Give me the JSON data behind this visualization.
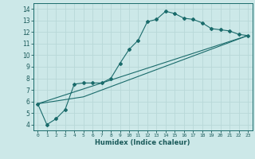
{
  "xlabel": "Humidex (Indice chaleur)",
  "ylabel": "",
  "bg_color": "#cce8e8",
  "grid_color": "#b8d8d8",
  "line_color": "#1a6b6b",
  "xlim": [
    -0.5,
    23.5
  ],
  "ylim": [
    3.5,
    14.5
  ],
  "xticks": [
    0,
    1,
    2,
    3,
    4,
    5,
    6,
    7,
    8,
    9,
    10,
    11,
    12,
    13,
    14,
    15,
    16,
    17,
    18,
    19,
    20,
    21,
    22,
    23
  ],
  "yticks": [
    4,
    5,
    6,
    7,
    8,
    9,
    10,
    11,
    12,
    13,
    14
  ],
  "line1_x": [
    0,
    1,
    2,
    3,
    4,
    5,
    6,
    7,
    8,
    9,
    10,
    11,
    12,
    13,
    14,
    15,
    16,
    17,
    18,
    19,
    20,
    21,
    22,
    23
  ],
  "line1_y": [
    5.8,
    4.0,
    4.5,
    5.3,
    7.5,
    7.6,
    7.6,
    7.6,
    8.0,
    9.3,
    10.5,
    11.3,
    12.9,
    13.1,
    13.8,
    13.6,
    13.2,
    13.1,
    12.8,
    12.3,
    12.2,
    12.1,
    11.8,
    11.7
  ],
  "line2_x": [
    0,
    23
  ],
  "line2_y": [
    5.8,
    11.7
  ],
  "line3_x": [
    0,
    5,
    23
  ],
  "line3_y": [
    5.8,
    6.4,
    11.7
  ]
}
